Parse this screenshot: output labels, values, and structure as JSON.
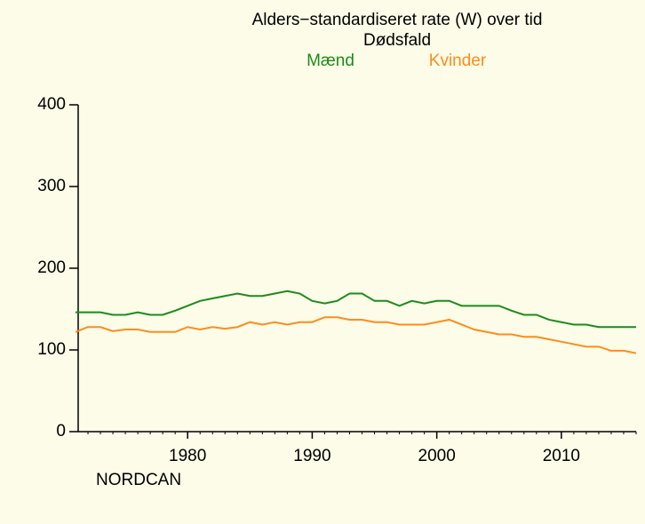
{
  "chart_data": {
    "type": "line",
    "title": "Alders−standardiseret rate (W) over tid",
    "subtitle": "Dødsfald",
    "source": "NORDCAN",
    "x": [
      1971,
      1972,
      1973,
      1974,
      1975,
      1976,
      1977,
      1978,
      1979,
      1980,
      1981,
      1982,
      1983,
      1984,
      1985,
      1986,
      1987,
      1988,
      1989,
      1990,
      1991,
      1992,
      1993,
      1994,
      1995,
      1996,
      1997,
      1998,
      1999,
      2000,
      2001,
      2002,
      2003,
      2004,
      2005,
      2006,
      2007,
      2008,
      2009,
      2010,
      2011,
      2012,
      2013,
      2014,
      2015,
      2016
    ],
    "series": [
      {
        "name": "Mænd",
        "color": "#1a8c1a",
        "values": [
          146,
          146,
          146,
          143,
          143,
          146,
          143,
          143,
          148,
          154,
          160,
          163,
          166,
          169,
          166,
          166,
          169,
          172,
          169,
          160,
          157,
          160,
          169,
          169,
          160,
          160,
          154,
          160,
          157,
          160,
          160,
          154,
          154,
          154,
          154,
          148,
          143,
          143,
          137,
          134,
          131,
          131,
          128,
          128,
          128,
          128
        ]
      },
      {
        "name": "Kvinder",
        "color": "#ff8c1a",
        "values": [
          122,
          128,
          128,
          123,
          125,
          125,
          122,
          122,
          122,
          128,
          125,
          128,
          126,
          128,
          134,
          131,
          134,
          131,
          134,
          134,
          140,
          140,
          137,
          137,
          134,
          134,
          131,
          131,
          131,
          134,
          137,
          131,
          125,
          122,
          119,
          119,
          116,
          116,
          113,
          110,
          107,
          104,
          104,
          99,
          99,
          96
        ]
      }
    ],
    "xlim": [
      1971,
      2016
    ],
    "xticks": [
      1980,
      1990,
      2000,
      2010
    ],
    "ylim": [
      0,
      400
    ],
    "yticks": [
      0,
      100,
      200,
      300,
      400
    ]
  }
}
